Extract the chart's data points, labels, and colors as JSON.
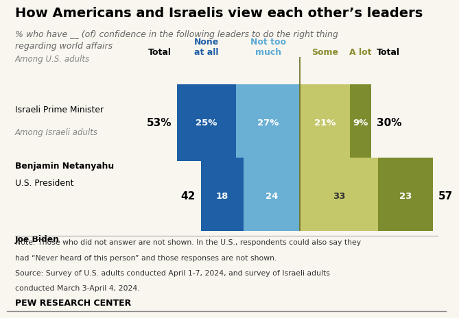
{
  "title": "How Americans and Israelis view each other’s leaders",
  "subtitle": "% who have __ (of) confidence in the following leaders to do the right thing\nregarding world affairs",
  "row1": {
    "group_label": "Among U.S. adults",
    "name_line1": "Israeli Prime Minister",
    "name_line2": "Benjamin Netanyahu",
    "left_total": "53%",
    "right_total": "30%",
    "none_at_all": 25,
    "not_too_much": 27,
    "some": 21,
    "a_lot": 9,
    "none_label": "25%",
    "not_too_label": "27%",
    "some_label": "21%",
    "a_lot_label": "9%"
  },
  "row2": {
    "group_label": "Among Israeli adults",
    "name_line1": "U.S. President",
    "name_line2": "Joe Biden",
    "left_total": "42",
    "right_total": "57",
    "none_at_all": 18,
    "not_too_much": 24,
    "some": 33,
    "a_lot": 23,
    "none_label": "18",
    "not_too_label": "24",
    "some_label": "33",
    "a_lot_label": "23"
  },
  "col_headers": {
    "total_left": "Total",
    "none_at_all": "None\nat all",
    "not_too_much": "Not too\nmuch",
    "some": "Some",
    "a_lot": "A lot",
    "total_right": "Total"
  },
  "colors": {
    "none_at_all": "#1f5fa6",
    "not_too_much": "#6aafd4",
    "some": "#c5c86a",
    "a_lot": "#7d8c2f",
    "divider_line": "#6b6b1e",
    "background": "#f9f6ef",
    "group_label_color": "#888888",
    "header_none": "#1f5fa6",
    "header_not_too": "#5aaad4",
    "header_some": "#8a8c2f",
    "header_a_lot": "#8a8c2f"
  },
  "note_line1": "Note: Those who did not answer are not shown. In the U.S., respondents could also say they",
  "note_line2": "had “Never heard of this person” and those responses are not shown.",
  "note_line3": "Source: Survey of U.S. adults conducted April 1-7, 2024, and survey of Israeli adults",
  "note_line4": "conducted March 3-April 4, 2024.",
  "source_label": "PEW RESEARCH CENTER"
}
